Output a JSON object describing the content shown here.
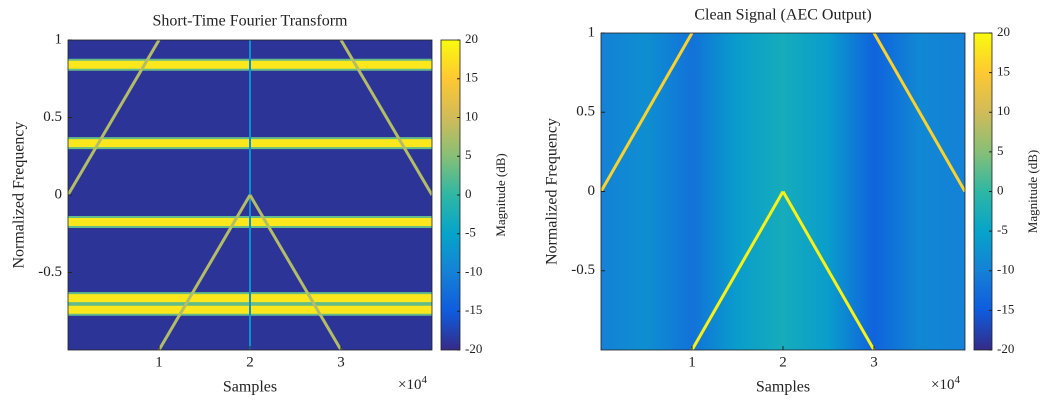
{
  "chart_data": [
    {
      "type": "spectrogram",
      "title": "Short-Time Fourier Transform",
      "x_label": "Samples",
      "y_label": "Normalized Frequency",
      "x_multiplier": {
        "base": "×10",
        "exponent": "4"
      },
      "xlim": [
        0,
        4
      ],
      "xticks": [
        1,
        2,
        3
      ],
      "ylim": [
        -1,
        1
      ],
      "yticks": [
        -0.5,
        0,
        0.5,
        1
      ],
      "clim": [
        -20,
        20
      ],
      "cticks": [
        -20,
        -15,
        -10,
        -5,
        0,
        5,
        10,
        15,
        20
      ],
      "colorbar_label": "Magnitude (dB)",
      "background_x": [
        0,
        4
      ],
      "background": [
        -19,
        -19
      ],
      "tracks": [
        {
          "x": [
            0,
            4
          ],
          "y": [
            0.84,
            0.84
          ],
          "level": 18,
          "width": 8
        },
        {
          "x": [
            0,
            4
          ],
          "y": [
            0.335,
            0.335
          ],
          "level": 18,
          "width": 8
        },
        {
          "x": [
            0,
            4
          ],
          "y": [
            -0.174,
            -0.174
          ],
          "level": 18,
          "width": 8
        },
        {
          "x": [
            0,
            4
          ],
          "y": [
            -0.665,
            -0.665
          ],
          "level": 18,
          "width": 8
        },
        {
          "x": [
            0,
            4
          ],
          "y": [
            -0.74,
            -0.74
          ],
          "level": 18,
          "width": 8
        },
        {
          "x": [
            2,
            2
          ],
          "y": [
            -1,
            1
          ],
          "level": -8,
          "width": 2
        },
        {
          "x": [
            0,
            1
          ],
          "y": [
            0,
            1
          ],
          "level": 8,
          "width": 3
        },
        {
          "x": [
            1,
            2
          ],
          "y": [
            -1,
            0
          ],
          "level": 8,
          "width": 3
        },
        {
          "x": [
            2,
            3
          ],
          "y": [
            0,
            -1
          ],
          "level": 8,
          "width": 3
        },
        {
          "x": [
            3,
            4
          ],
          "y": [
            1,
            0
          ],
          "level": 8,
          "width": 3
        }
      ]
    },
    {
      "type": "spectrogram",
      "title": "Clean Signal (AEC Output)",
      "x_label": "Samples",
      "y_label": "Normalized Frequency",
      "x_multiplier": {
        "base": "×10",
        "exponent": "4"
      },
      "xlim": [
        0,
        4
      ],
      "xticks": [
        1,
        2,
        3
      ],
      "ylim": [
        -1,
        1
      ],
      "yticks": [
        -0.5,
        0,
        0.5,
        1
      ],
      "clim": [
        -20,
        20
      ],
      "cticks": [
        -20,
        -15,
        -10,
        -5,
        0,
        5,
        10,
        15,
        20
      ],
      "colorbar_label": "Magnitude (dB)",
      "background_x": [
        0,
        0.5,
        1,
        1.5,
        2,
        2.5,
        3,
        3.5,
        4
      ],
      "background": [
        -10,
        -8,
        -12,
        -6,
        -3,
        -6,
        -14,
        -9,
        -10
      ],
      "tracks": [
        {
          "x": [
            0,
            1
          ],
          "y": [
            0,
            1
          ],
          "level": 16,
          "width": 3
        },
        {
          "x": [
            1,
            2
          ],
          "y": [
            -1,
            0
          ],
          "level": 19,
          "width": 3
        },
        {
          "x": [
            2,
            3
          ],
          "y": [
            0,
            -1
          ],
          "level": 19,
          "width": 3
        },
        {
          "x": [
            3,
            4
          ],
          "y": [
            1,
            0
          ],
          "level": 16,
          "width": 3
        }
      ]
    }
  ]
}
